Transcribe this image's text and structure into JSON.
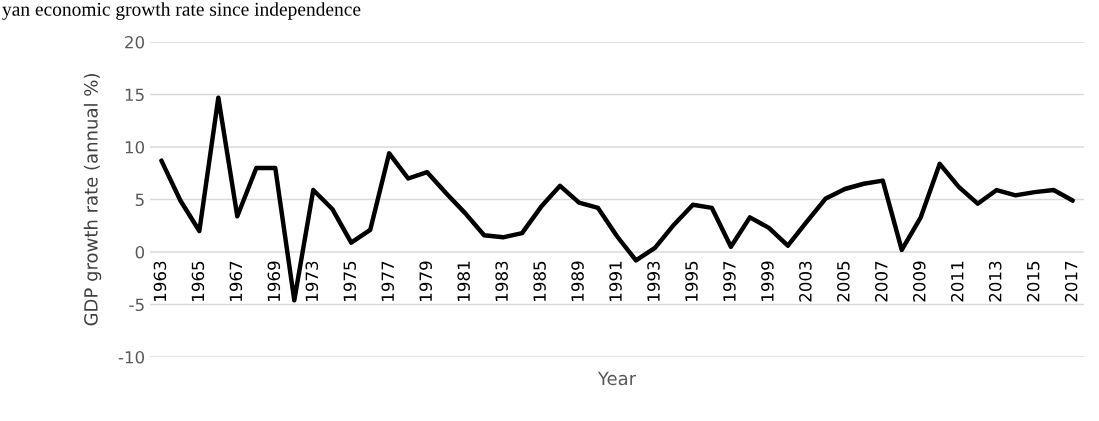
{
  "chart_data": {
    "type": "line",
    "title": "yan economic growth rate since independence",
    "xlabel": "Year",
    "ylabel": "GDP growth rate (annual %)",
    "categories": [
      "1963",
      null,
      "1965",
      null,
      "1967",
      null,
      "1969",
      null,
      "1973",
      null,
      "1975",
      null,
      "1977",
      null,
      "1979",
      null,
      "1981",
      null,
      "1983",
      null,
      "1985",
      null,
      "1989",
      null,
      "1991",
      null,
      "1993",
      null,
      "1995",
      null,
      "1997",
      null,
      "1999",
      null,
      "2003",
      null,
      "2005",
      null,
      "2007",
      null,
      "2009",
      null,
      "2011",
      null,
      "2013",
      null,
      "2015",
      null,
      "2017"
    ],
    "series": [
      {
        "color": "#000000",
        "values": [
          8.7,
          4.9,
          2.0,
          14.7,
          3.4,
          8.0,
          8.0,
          -4.6,
          5.9,
          4.1,
          0.9,
          2.1,
          9.4,
          7.0,
          7.6,
          5.6,
          3.7,
          1.6,
          1.4,
          1.8,
          4.3,
          6.3,
          4.7,
          4.2,
          1.5,
          -0.8,
          0.4,
          2.6,
          4.5,
          4.2,
          0.5,
          3.3,
          2.3,
          0.6,
          2.9,
          5.1,
          6.0,
          6.5,
          6.8,
          0.2,
          3.3,
          8.4,
          6.2,
          4.6,
          5.9,
          5.4,
          5.7,
          5.9,
          4.9
        ]
      }
    ],
    "ylim": [
      -10,
      20
    ],
    "yticks": [
      -10,
      -5,
      0,
      5,
      10,
      15,
      20
    ],
    "grid": "y",
    "marker": "none",
    "line_style": "solid"
  }
}
